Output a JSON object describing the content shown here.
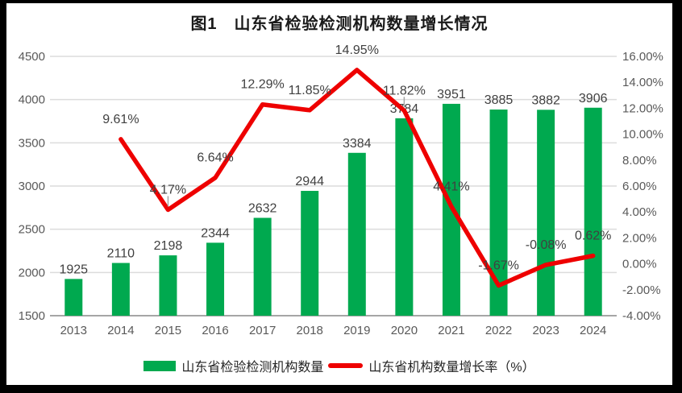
{
  "title": {
    "text": "图1　山东省检验检测机构数量增长情况"
  },
  "chart_data": {
    "type": "bar+line",
    "title": "图1　山东省检验检测机构数量增长情况",
    "categories": [
      "2013",
      "2014",
      "2015",
      "2016",
      "2017",
      "2018",
      "2019",
      "2020",
      "2021",
      "2022",
      "2023",
      "2024"
    ],
    "series": [
      {
        "name": "山东省检验检测机构数量",
        "type": "bar",
        "axis": "left",
        "color": "#00A94F",
        "values": [
          1925,
          2110,
          2198,
          2344,
          2632,
          2944,
          3384,
          3784,
          3951,
          3885,
          3882,
          3906
        ],
        "labels": [
          "1925",
          "2110",
          "2198",
          "2344",
          "2632",
          "2944",
          "3384",
          "3784",
          "3951",
          "3885",
          "3882",
          "3906"
        ]
      },
      {
        "name": "山东省机构数量增长率（%）",
        "type": "line",
        "axis": "right",
        "color": "#EE0000",
        "values": [
          null,
          9.61,
          4.17,
          6.64,
          12.29,
          11.85,
          14.95,
          11.82,
          4.41,
          -1.67,
          -0.08,
          0.62
        ],
        "labels": [
          null,
          "9.61%",
          "4.17%",
          "6.64%",
          "12.29%",
          "11.85%",
          "14.95%",
          "11.82%",
          "4.41%",
          "-1.67%",
          "-0.08%",
          "0.62%"
        ],
        "leader_label_indices": [
          2,
          7
        ]
      }
    ],
    "left_axis": {
      "min": 1500,
      "max": 4500,
      "step": 500,
      "tick_labels": [
        "4500",
        "4000",
        "3500",
        "3000",
        "2500",
        "2000",
        "1500"
      ]
    },
    "right_axis": {
      "min": -4,
      "max": 16,
      "step": 2,
      "tick_labels": [
        "16.00%",
        "14.00%",
        "12.00%",
        "10.00%",
        "8.00%",
        "6.00%",
        "4.00%",
        "2.00%",
        "0.00%",
        "-2.00%",
        "-4.00%"
      ]
    },
    "grid": true,
    "legend_position": "bottom"
  },
  "legend": {
    "items": [
      {
        "label": "山东省检验检测机构数量",
        "swatch_type": "bar",
        "color": "#00A94F"
      },
      {
        "label": "山东省机构数量增长率（%）",
        "swatch_type": "line",
        "color": "#EE0000"
      }
    ]
  },
  "colors": {
    "bar_green": "#00A94F",
    "line_red": "#EE0000",
    "gridline": "#DCDCDC",
    "axis_line": "#A6A6A6",
    "tick_text": "#595959",
    "data_label_text": "#404040",
    "frame_border": "#000000",
    "background": "#FFFFFF"
  }
}
